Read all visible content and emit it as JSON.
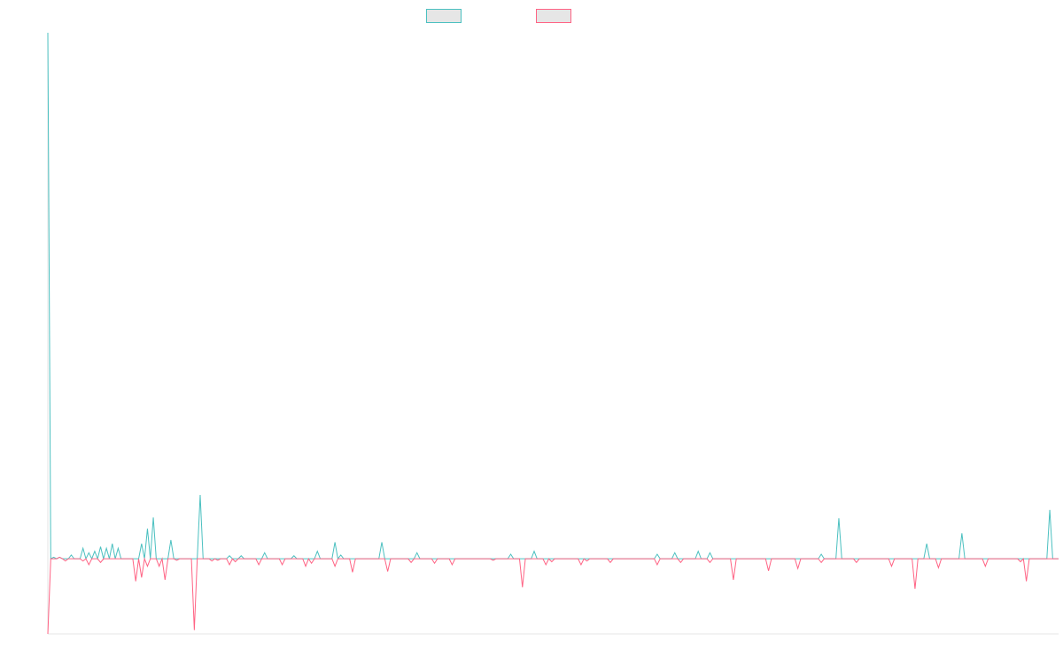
{
  "chart_data": {
    "type": "line",
    "title": "",
    "xlabel": "",
    "ylabel": "",
    "grid": false,
    "legend_position": "top-center",
    "ylim": [
      -100,
      700
    ],
    "x_count": 346,
    "series": [
      {
        "color": "#4bc0c0",
        "fill": "#e6e6e6",
        "spikes": [
          [
            0,
            700
          ],
          [
            2,
            2
          ],
          [
            4,
            2
          ],
          [
            6,
            0
          ],
          [
            8,
            5
          ],
          [
            10,
            0
          ],
          [
            12,
            14
          ],
          [
            14,
            8
          ],
          [
            16,
            10
          ],
          [
            18,
            16
          ],
          [
            20,
            14
          ],
          [
            22,
            20
          ],
          [
            24,
            14
          ],
          [
            26,
            0
          ],
          [
            30,
            0
          ],
          [
            32,
            20
          ],
          [
            34,
            40
          ],
          [
            36,
            55
          ],
          [
            38,
            0
          ],
          [
            40,
            0
          ],
          [
            42,
            25
          ],
          [
            44,
            0
          ],
          [
            48,
            0
          ],
          [
            50,
            0
          ],
          [
            52,
            85
          ],
          [
            54,
            0
          ],
          [
            60,
            0
          ],
          [
            62,
            4
          ],
          [
            64,
            0
          ],
          [
            66,
            4
          ],
          [
            68,
            0
          ],
          [
            72,
            0
          ],
          [
            74,
            8
          ],
          [
            76,
            0
          ],
          [
            82,
            0
          ],
          [
            84,
            4
          ],
          [
            86,
            0
          ],
          [
            90,
            0
          ],
          [
            92,
            10
          ],
          [
            94,
            0
          ],
          [
            96,
            0
          ],
          [
            98,
            22
          ],
          [
            100,
            5
          ],
          [
            102,
            0
          ],
          [
            112,
            0
          ],
          [
            114,
            22
          ],
          [
            116,
            0
          ],
          [
            124,
            0
          ],
          [
            126,
            8
          ],
          [
            128,
            0
          ],
          [
            140,
            0
          ],
          [
            142,
            0
          ],
          [
            148,
            0
          ],
          [
            150,
            0
          ],
          [
            154,
            0
          ],
          [
            156,
            0
          ],
          [
            158,
            6
          ],
          [
            160,
            0
          ],
          [
            164,
            0
          ],
          [
            166,
            10
          ],
          [
            168,
            0
          ],
          [
            172,
            0
          ],
          [
            174,
            0
          ],
          [
            178,
            0
          ],
          [
            180,
            0
          ],
          [
            184,
            0
          ],
          [
            186,
            0
          ],
          [
            198,
            0
          ],
          [
            200,
            0
          ],
          [
            206,
            0
          ],
          [
            208,
            6
          ],
          [
            210,
            0
          ],
          [
            212,
            0
          ],
          [
            214,
            8
          ],
          [
            216,
            0
          ],
          [
            218,
            0
          ],
          [
            220,
            0
          ],
          [
            222,
            10
          ],
          [
            224,
            0
          ],
          [
            226,
            8
          ],
          [
            228,
            0
          ],
          [
            232,
            0
          ],
          [
            234,
            0
          ],
          [
            236,
            0
          ],
          [
            246,
            0
          ],
          [
            248,
            0
          ],
          [
            252,
            0
          ],
          [
            254,
            0
          ],
          [
            256,
            0
          ],
          [
            262,
            0
          ],
          [
            264,
            6
          ],
          [
            266,
            0
          ],
          [
            268,
            0
          ],
          [
            270,
            54
          ],
          [
            272,
            0
          ],
          [
            280,
            0
          ],
          [
            282,
            0
          ],
          [
            298,
            0
          ],
          [
            300,
            20
          ],
          [
            302,
            0
          ],
          [
            310,
            0
          ],
          [
            312,
            34
          ],
          [
            314,
            0
          ],
          [
            338,
            0
          ],
          [
            340,
            0
          ],
          [
            342,
            65
          ],
          [
            344,
            0
          ]
        ]
      },
      {
        "color": "#ff6384",
        "fill": "#e6e6e6",
        "spikes": [
          [
            0,
            -100
          ],
          [
            2,
            0
          ],
          [
            4,
            2
          ],
          [
            6,
            -3
          ],
          [
            8,
            0
          ],
          [
            10,
            0
          ],
          [
            12,
            -3
          ],
          [
            14,
            -8
          ],
          [
            16,
            0
          ],
          [
            18,
            -5
          ],
          [
            20,
            0
          ],
          [
            26,
            0
          ],
          [
            28,
            0
          ],
          [
            30,
            -30
          ],
          [
            32,
            -25
          ],
          [
            34,
            -10
          ],
          [
            36,
            0
          ],
          [
            38,
            -10
          ],
          [
            40,
            -28
          ],
          [
            42,
            0
          ],
          [
            44,
            -2
          ],
          [
            46,
            0
          ],
          [
            48,
            0
          ],
          [
            50,
            -95
          ],
          [
            52,
            0
          ],
          [
            54,
            0
          ],
          [
            56,
            -3
          ],
          [
            58,
            -2
          ],
          [
            60,
            0
          ],
          [
            62,
            -8
          ],
          [
            64,
            -4
          ],
          [
            66,
            0
          ],
          [
            70,
            0
          ],
          [
            72,
            -8
          ],
          [
            74,
            0
          ],
          [
            78,
            0
          ],
          [
            80,
            -8
          ],
          [
            82,
            0
          ],
          [
            86,
            0
          ],
          [
            88,
            -10
          ],
          [
            90,
            -6
          ],
          [
            92,
            0
          ],
          [
            98,
            -10
          ],
          [
            100,
            0
          ],
          [
            102,
            0
          ],
          [
            104,
            -18
          ],
          [
            106,
            0
          ],
          [
            114,
            0
          ],
          [
            116,
            -17
          ],
          [
            118,
            0
          ],
          [
            122,
            0
          ],
          [
            124,
            -5
          ],
          [
            126,
            0
          ],
          [
            130,
            0
          ],
          [
            132,
            -6
          ],
          [
            134,
            0
          ],
          [
            136,
            0
          ],
          [
            138,
            -8
          ],
          [
            140,
            0
          ],
          [
            150,
            0
          ],
          [
            152,
            -2
          ],
          [
            154,
            0
          ],
          [
            160,
            0
          ],
          [
            162,
            -38
          ],
          [
            164,
            0
          ],
          [
            168,
            0
          ],
          [
            170,
            -8
          ],
          [
            172,
            -4
          ],
          [
            174,
            0
          ],
          [
            180,
            0
          ],
          [
            182,
            -8
          ],
          [
            184,
            -3
          ],
          [
            186,
            0
          ],
          [
            190,
            0
          ],
          [
            192,
            -5
          ],
          [
            194,
            0
          ],
          [
            206,
            0
          ],
          [
            208,
            -8
          ],
          [
            210,
            0
          ],
          [
            214,
            0
          ],
          [
            216,
            -5
          ],
          [
            218,
            0
          ],
          [
            224,
            0
          ],
          [
            226,
            -5
          ],
          [
            228,
            0
          ],
          [
            232,
            0
          ],
          [
            234,
            -28
          ],
          [
            236,
            0
          ],
          [
            244,
            0
          ],
          [
            246,
            -16
          ],
          [
            248,
            0
          ],
          [
            254,
            0
          ],
          [
            256,
            -13
          ],
          [
            258,
            0
          ],
          [
            262,
            0
          ],
          [
            264,
            -5
          ],
          [
            266,
            0
          ],
          [
            274,
            0
          ],
          [
            276,
            -5
          ],
          [
            278,
            0
          ],
          [
            286,
            0
          ],
          [
            288,
            -10
          ],
          [
            290,
            0
          ],
          [
            294,
            0
          ],
          [
            296,
            -40
          ],
          [
            298,
            0
          ],
          [
            302,
            0
          ],
          [
            304,
            -12
          ],
          [
            306,
            0
          ],
          [
            318,
            0
          ],
          [
            320,
            -10
          ],
          [
            322,
            0
          ],
          [
            330,
            0
          ],
          [
            332,
            -4
          ],
          [
            334,
            -30
          ],
          [
            336,
            0
          ]
        ]
      }
    ]
  }
}
